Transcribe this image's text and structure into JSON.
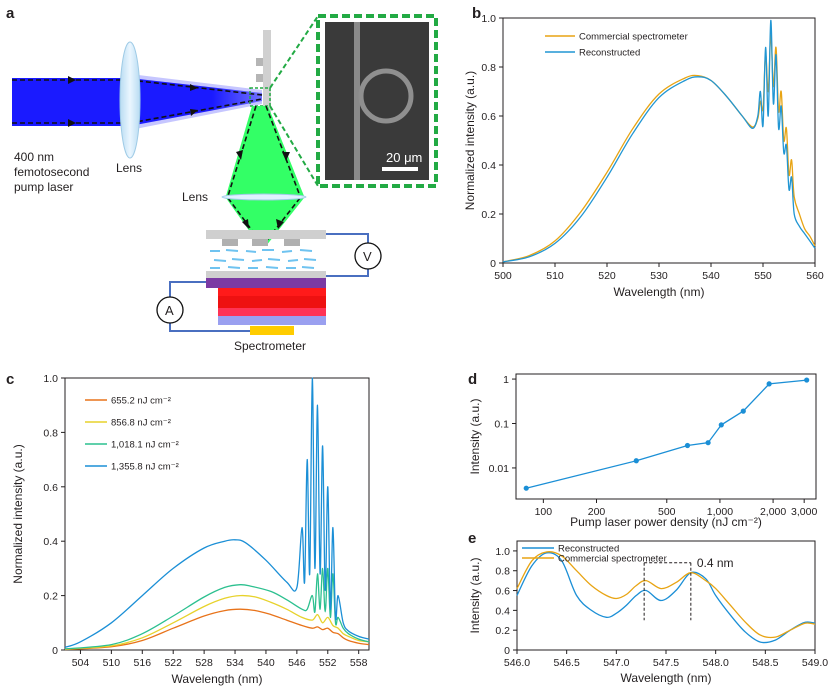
{
  "panel_labels": {
    "a": "a",
    "b": "b",
    "c": "c",
    "d": "d",
    "e": "e"
  },
  "schematic": {
    "pump_label_1": "400 nm",
    "pump_label_2": "femotosecond",
    "pump_label_3": "pump laser",
    "lens_label_1": "Lens",
    "lens_label_2": "Lens",
    "scale_bar": "20 μm",
    "voltmeter": "V",
    "ammeter": "A",
    "spectrometer_label": "Spectrometer",
    "colors": {
      "pump": "#1a1aff",
      "emission": "#33ff66",
      "inset_border": "#22aa44",
      "circuit": "#4a6fc0",
      "electrode": "#ffcc00"
    }
  },
  "chart_data": [
    {
      "id": "b",
      "type": "line",
      "xlabel": "Wavelength (nm)",
      "ylabel": "Normalized intensity (a.u.)",
      "xlim": [
        500,
        560
      ],
      "ylim": [
        0,
        1.0
      ],
      "xticks": [
        "500",
        "510",
        "520",
        "530",
        "540",
        "550",
        "560"
      ],
      "yticks": [
        "0",
        "0.2",
        "0.4",
        "0.6",
        "0.8",
        "1.0"
      ],
      "legend_position": "top-left",
      "series": [
        {
          "name": "Commercial spectrometer",
          "color": "#e8a413",
          "x": [
            500,
            505,
            510,
            515,
            520,
            525,
            530,
            535,
            537.5,
            540,
            543,
            546,
            548,
            549,
            549.5,
            550,
            550.5,
            551,
            551.5,
            552,
            552.5,
            553,
            553.5,
            554,
            554.5,
            555,
            555.5,
            556,
            557,
            558,
            559,
            560
          ],
          "y": [
            0.005,
            0.03,
            0.09,
            0.21,
            0.37,
            0.55,
            0.69,
            0.755,
            0.765,
            0.745,
            0.68,
            0.6,
            0.555,
            0.59,
            0.66,
            0.63,
            0.85,
            0.7,
            0.93,
            0.72,
            0.88,
            0.62,
            0.7,
            0.5,
            0.55,
            0.36,
            0.42,
            0.27,
            0.2,
            0.14,
            0.11,
            0.07
          ]
        },
        {
          "name": "Reconstructed",
          "color": "#2196d3",
          "x": [
            500,
            505,
            510,
            515,
            520,
            525,
            530,
            535,
            537.5,
            540,
            543,
            546,
            548,
            549,
            549.5,
            550,
            550.5,
            551,
            551.5,
            552,
            552.5,
            553,
            553.5,
            554,
            554.5,
            555,
            555.5,
            556,
            557,
            558,
            559,
            560
          ],
          "y": [
            0.005,
            0.025,
            0.08,
            0.19,
            0.35,
            0.53,
            0.675,
            0.745,
            0.76,
            0.745,
            0.68,
            0.6,
            0.55,
            0.6,
            0.7,
            0.56,
            0.88,
            0.6,
            0.99,
            0.65,
            0.85,
            0.55,
            0.64,
            0.45,
            0.48,
            0.3,
            0.35,
            0.2,
            0.15,
            0.12,
            0.09,
            0.06
          ]
        }
      ]
    },
    {
      "id": "c",
      "type": "line",
      "xlabel": "Wavelength (nm)",
      "ylabel": "Normalized intensity (a.u.)",
      "xlim": [
        501,
        560
      ],
      "ylim": [
        0,
        1.0
      ],
      "xticks": [
        "504",
        "510",
        "516",
        "522",
        "528",
        "534",
        "540",
        "546",
        "552",
        "558"
      ],
      "yticks": [
        "0",
        "0.2",
        "0.4",
        "0.6",
        "0.8",
        "1.0"
      ],
      "legend_position": "top-left",
      "series": [
        {
          "name": "655.2 nJ cm⁻²",
          "color": "#e8731a",
          "x": [
            501,
            510,
            516,
            522,
            528,
            532,
            535,
            538,
            541,
            544,
            547,
            549,
            550,
            551,
            552,
            553,
            554,
            555,
            556,
            558,
            560
          ],
          "y": [
            0.002,
            0.012,
            0.035,
            0.08,
            0.125,
            0.145,
            0.15,
            0.145,
            0.13,
            0.11,
            0.09,
            0.08,
            0.085,
            0.075,
            0.08,
            0.065,
            0.06,
            0.045,
            0.035,
            0.025,
            0.02
          ]
        },
        {
          "name": "856.8 nJ cm⁻²",
          "color": "#e7d22b",
          "x": [
            501,
            510,
            516,
            522,
            528,
            532,
            535,
            538,
            541,
            544,
            547,
            549,
            550,
            551,
            552,
            553,
            554,
            555,
            556,
            558,
            560
          ],
          "y": [
            0.003,
            0.015,
            0.045,
            0.1,
            0.16,
            0.19,
            0.2,
            0.195,
            0.175,
            0.15,
            0.12,
            0.11,
            0.13,
            0.1,
            0.12,
            0.09,
            0.08,
            0.06,
            0.05,
            0.035,
            0.03
          ]
        },
        {
          "name": "1,018.1 nJ cm⁻²",
          "color": "#2cc08f",
          "x": [
            501,
            510,
            516,
            522,
            528,
            532,
            535,
            537,
            541,
            544,
            547,
            548,
            549,
            549.5,
            550,
            550.5,
            551,
            551.5,
            552,
            552.5,
            553,
            553.5,
            554,
            555,
            556,
            558,
            560
          ],
          "y": [
            0.004,
            0.02,
            0.06,
            0.125,
            0.195,
            0.23,
            0.24,
            0.235,
            0.215,
            0.185,
            0.15,
            0.15,
            0.2,
            0.14,
            0.28,
            0.15,
            0.3,
            0.14,
            0.3,
            0.12,
            0.28,
            0.1,
            0.12,
            0.08,
            0.06,
            0.04,
            0.03
          ]
        },
        {
          "name": "1,355.8 nJ cm⁻²",
          "color": "#1b8fd6",
          "x": [
            501,
            504,
            510,
            516,
            522,
            528,
            532,
            534,
            536,
            540,
            544,
            546,
            547,
            547.5,
            548,
            548.5,
            549,
            549.5,
            550,
            550.5,
            551,
            551.5,
            552,
            552.5,
            553,
            553.5,
            554,
            555,
            556,
            558,
            560
          ],
          "y": [
            0.01,
            0.03,
            0.1,
            0.2,
            0.3,
            0.375,
            0.4,
            0.405,
            0.395,
            0.33,
            0.25,
            0.23,
            0.45,
            0.25,
            0.7,
            0.28,
            1.0,
            0.3,
            0.9,
            0.28,
            0.75,
            0.22,
            0.6,
            0.15,
            0.45,
            0.12,
            0.2,
            0.1,
            0.07,
            0.05,
            0.04
          ]
        }
      ]
    },
    {
      "id": "d",
      "type": "line",
      "scale": "log-log",
      "xlabel": "Pump laser power density (nJ cm⁻²)",
      "ylabel": "Intensity (a.u.)",
      "xlim": [
        70,
        3500
      ],
      "ylim": [
        0.002,
        1.3
      ],
      "xticks": [
        "100",
        "200",
        "500",
        "1,000",
        "2,000",
        "3,000"
      ],
      "yticks": [
        "0.01",
        "0.1",
        "1"
      ],
      "series": [
        {
          "name": "",
          "color": "#1b8fd6",
          "x": [
            80,
            336,
            655,
            857,
            1018,
            1356,
            1900,
            3100
          ],
          "y": [
            0.0035,
            0.0145,
            0.032,
            0.037,
            0.093,
            0.19,
            0.78,
            0.95
          ]
        }
      ]
    },
    {
      "id": "e",
      "type": "line",
      "xlabel": "Wavelength (nm)",
      "ylabel": "Intensity (a.u.)",
      "xlim": [
        546.0,
        549.0
      ],
      "ylim": [
        0,
        1.1
      ],
      "xticks": [
        "546.0",
        "546.5",
        "547.0",
        "547.5",
        "548.0",
        "548.5",
        "549.0"
      ],
      "yticks": [
        "0",
        "0.2",
        "0.4",
        "0.6",
        "0.8",
        "1.0"
      ],
      "legend_position": "top-left",
      "annotation": "0.4 nm",
      "series": [
        {
          "name": "Reconstructed",
          "color": "#1b8fd6",
          "x": [
            546.0,
            546.15,
            546.3,
            546.45,
            546.6,
            546.75,
            546.9,
            547.0,
            547.1,
            547.2,
            547.3,
            547.45,
            547.6,
            547.75,
            547.9,
            548.0,
            548.15,
            548.3,
            548.45,
            548.6,
            548.75,
            548.9,
            549.0
          ],
          "y": [
            0.55,
            0.85,
            0.98,
            0.9,
            0.55,
            0.4,
            0.33,
            0.37,
            0.45,
            0.55,
            0.6,
            0.5,
            0.6,
            0.78,
            0.72,
            0.55,
            0.35,
            0.18,
            0.08,
            0.1,
            0.2,
            0.28,
            0.27
          ]
        },
        {
          "name": "Commercial spectrometer",
          "color": "#e8a413",
          "x": [
            546.0,
            546.15,
            546.3,
            546.45,
            546.6,
            546.75,
            546.9,
            547.0,
            547.1,
            547.2,
            547.3,
            547.45,
            547.6,
            547.75,
            547.9,
            548.0,
            548.15,
            548.3,
            548.45,
            548.6,
            548.75,
            548.9,
            549.0
          ],
          "y": [
            0.62,
            0.9,
            0.99,
            0.95,
            0.8,
            0.65,
            0.55,
            0.52,
            0.56,
            0.65,
            0.7,
            0.62,
            0.68,
            0.78,
            0.7,
            0.62,
            0.45,
            0.28,
            0.15,
            0.13,
            0.2,
            0.27,
            0.26
          ]
        }
      ]
    }
  ]
}
